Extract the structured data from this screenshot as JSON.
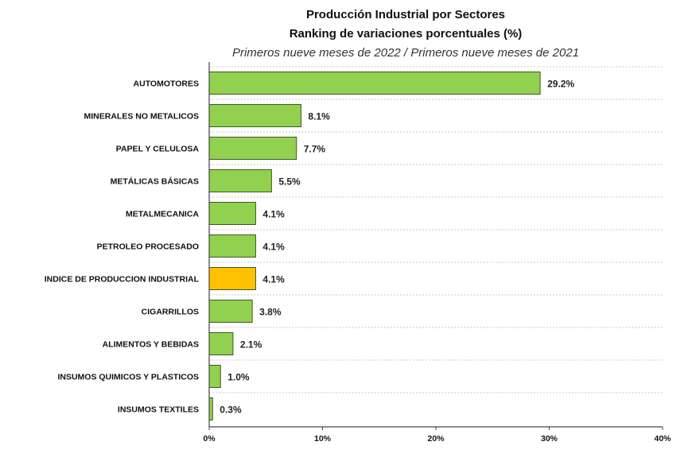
{
  "chart_data": {
    "type": "bar",
    "orientation": "horizontal",
    "title": "Producción Industrial por Sectores",
    "subtitle": "Ranking de variaciones porcentuales (%)",
    "note": "Primeros nueve meses de 2022 / Primeros nueve meses de 2021",
    "categories": [
      "AUTOMOTORES",
      "MINERALES NO METALICOS",
      "PAPEL Y CELULOSA",
      "METÁLICAS BÁSICAS",
      "METALMECANICA",
      "PETROLEO PROCESADO",
      "INDICE DE PRODUCCION INDUSTRIAL",
      "CIGARRILLOS",
      "ALIMENTOS Y BEBIDAS",
      "INSUMOS QUIMICOS Y PLASTICOS",
      "INSUMOS TEXTILES"
    ],
    "values": [
      29.2,
      8.1,
      7.7,
      5.5,
      4.1,
      4.1,
      4.1,
      3.8,
      2.1,
      1.0,
      0.3
    ],
    "value_labels": [
      "29.2%",
      "8.1%",
      "7.7%",
      "5.5%",
      "4.1%",
      "4.1%",
      "4.1%",
      "3.8%",
      "2.1%",
      "1.0%",
      "0.3%"
    ],
    "xlim": [
      0,
      40
    ],
    "x_ticks": [
      "0%",
      "10%",
      "20%",
      "30%",
      "40%"
    ],
    "grid": "horizontal dashed",
    "colors": {
      "bar": "#92d050",
      "highlight": "#ffc000",
      "border": "#3a5a1a"
    },
    "highlight_category": "INDICE DE PRODUCCION INDUSTRIAL"
  }
}
